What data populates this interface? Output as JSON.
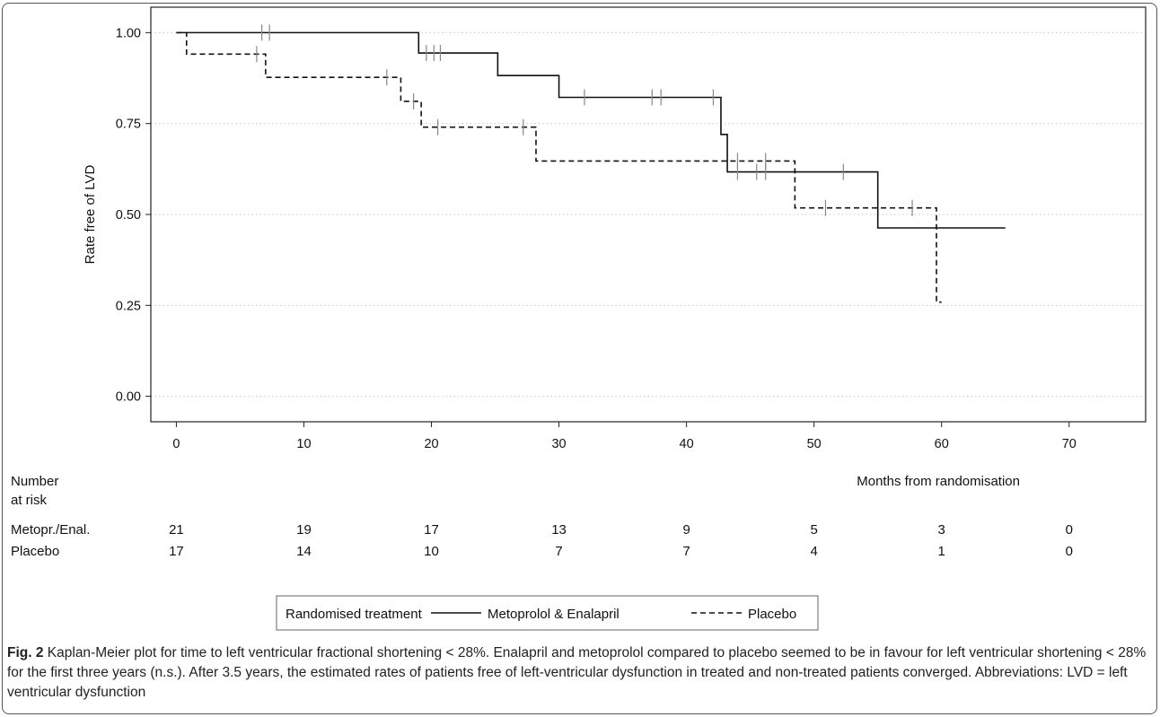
{
  "chart_data": {
    "type": "line",
    "subtype": "kaplan-meier",
    "title": "",
    "xlabel": "Months from randomisation",
    "ylabel": "Rate free of LVD",
    "xlim": [
      -2,
      76
    ],
    "ylim": [
      -0.07,
      1.07
    ],
    "x_ticks": [
      0,
      10,
      20,
      30,
      40,
      50,
      60,
      70
    ],
    "y_ticks": [
      0.0,
      0.25,
      0.5,
      0.75,
      1.0
    ],
    "y_tick_labels": [
      "0.00",
      "0.25",
      "0.50",
      "0.75",
      "1.00"
    ],
    "grid": "horizontal dotted",
    "legend_title": "Randomised treatment",
    "legend_placement": "bottom",
    "series": [
      {
        "name": "Metoprolol & Enalapril",
        "line_style": "solid",
        "color": "#111111",
        "steps": [
          [
            0,
            1.0
          ],
          [
            19,
            0.944
          ],
          [
            25.2,
            0.882
          ],
          [
            30,
            0.822
          ],
          [
            42.7,
            0.72
          ],
          [
            43.2,
            0.617
          ],
          [
            55,
            0.463
          ],
          [
            65,
            0.463
          ]
        ],
        "censored": [
          [
            6.7,
            1.0
          ],
          [
            7.3,
            1.0
          ],
          [
            19.6,
            0.944
          ],
          [
            20.2,
            0.944
          ],
          [
            20.7,
            0.944
          ],
          [
            32,
            0.822
          ],
          [
            37.3,
            0.822
          ],
          [
            38,
            0.822
          ],
          [
            42.1,
            0.822
          ],
          [
            44,
            0.617
          ],
          [
            45.5,
            0.617
          ],
          [
            46.2,
            0.617
          ],
          [
            52.3,
            0.617
          ]
        ]
      },
      {
        "name": "Placebo",
        "line_style": "dashed",
        "color": "#111111",
        "steps": [
          [
            0,
            1.0
          ],
          [
            0.8,
            0.941
          ],
          [
            7,
            0.877
          ],
          [
            17.6,
            0.811
          ],
          [
            19.2,
            0.74
          ],
          [
            28.2,
            0.647
          ],
          [
            48.5,
            0.518
          ],
          [
            59.6,
            0.259
          ],
          [
            60,
            0.259
          ]
        ],
        "censored": [
          [
            6.3,
            0.941
          ],
          [
            16.5,
            0.877
          ],
          [
            18.6,
            0.811
          ],
          [
            20.5,
            0.74
          ],
          [
            27.2,
            0.74
          ],
          [
            44,
            0.647
          ],
          [
            46.2,
            0.647
          ],
          [
            50.9,
            0.518
          ],
          [
            57.7,
            0.518
          ]
        ]
      }
    ],
    "risk_table": {
      "header": [
        "Number",
        "at risk"
      ],
      "times": [
        0,
        10,
        20,
        30,
        40,
        50,
        60,
        70
      ],
      "rows": [
        {
          "label": "Metopr./Enal.",
          "values": [
            "21",
            "19",
            "17",
            "13",
            "9",
            "5",
            "3",
            "0"
          ]
        },
        {
          "label": "Placebo",
          "values": [
            "17",
            "14",
            "10",
            "7",
            "7",
            "4",
            "1",
            "0"
          ]
        }
      ]
    }
  },
  "caption": {
    "label": "Fig. 2",
    "text": " Kaplan-Meier plot for time to left ventricular fractional shortening < 28%. Enalapril and metoprolol compared to placebo seemed to be in favour for left ventricular shortening < 28% for the first three years (n.s.). After 3.5 years, the estimated rates of patients free of left-ventricular dysfunction in treated and non-treated patients converged. Abbreviations: LVD = left ventricular dysfunction"
  }
}
